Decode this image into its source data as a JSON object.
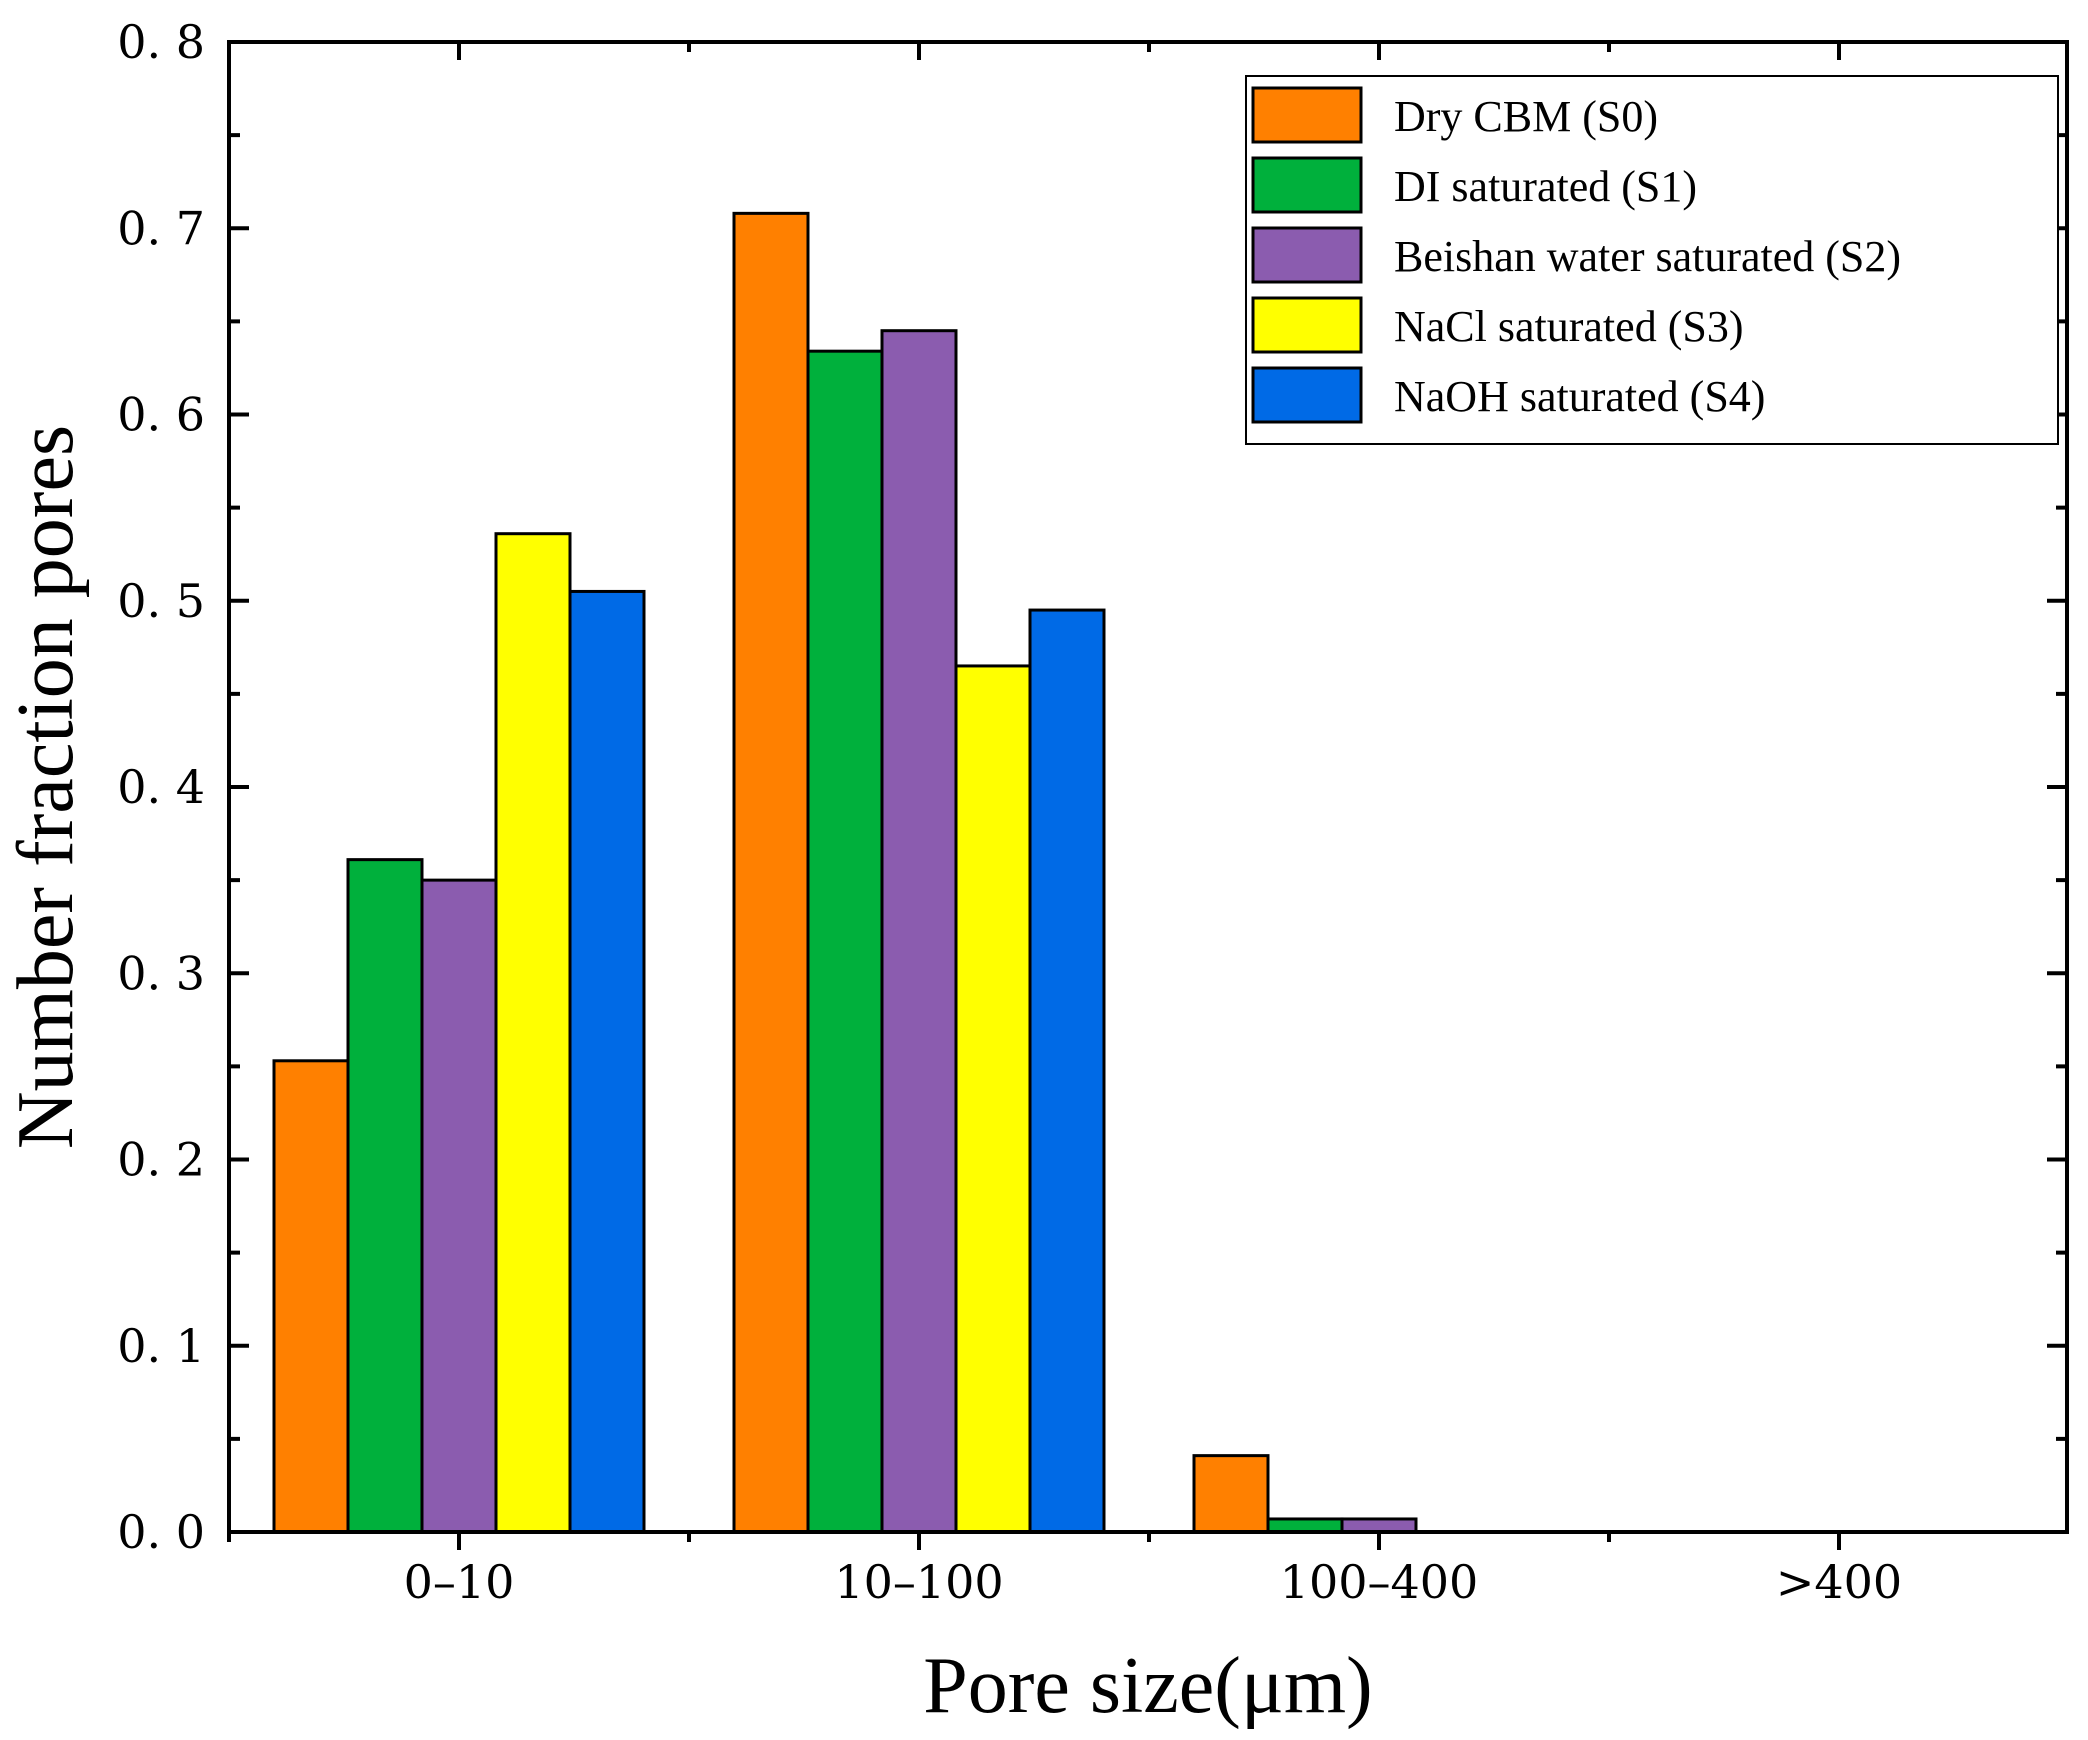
{
  "chart_data": {
    "type": "bar",
    "title": "",
    "xlabel": "Pore size(μm)",
    "ylabel": "Number fraction pores",
    "ylim": [
      0,
      0.8
    ],
    "yticks": [
      0,
      0.1,
      0.2,
      0.3,
      0.4,
      0.5,
      0.6,
      0.7,
      0.8
    ],
    "ytick_labels": [
      "0. 0",
      "0. 1",
      "0. 2",
      "0. 3",
      "0. 4",
      "0. 5",
      "0. 6",
      "0. 7",
      "0. 8"
    ],
    "categories": [
      "0–10",
      "10–100",
      "100–400",
      ">400"
    ],
    "series": [
      {
        "name": "Dry CBM (S0)",
        "color": "#ff8000",
        "values": [
          0.253,
          0.708,
          0.041,
          0.0
        ]
      },
      {
        "name": "DI saturated (S1)",
        "color": "#00b03c",
        "values": [
          0.361,
          0.634,
          0.007,
          0.0
        ]
      },
      {
        "name": "Beishan water saturated (S2)",
        "color": "#8b5caf",
        "values": [
          0.35,
          0.645,
          0.007,
          0.0
        ]
      },
      {
        "name": "NaCl saturated (S3)",
        "color": "#ffff00",
        "values": [
          0.536,
          0.465,
          0.0,
          0.0
        ]
      },
      {
        "name": "NaOH saturated (S4)",
        "color": "#006ae6",
        "values": [
          0.505,
          0.495,
          0.0,
          0.0
        ]
      }
    ],
    "legend_position": "top-right",
    "grid": false
  }
}
